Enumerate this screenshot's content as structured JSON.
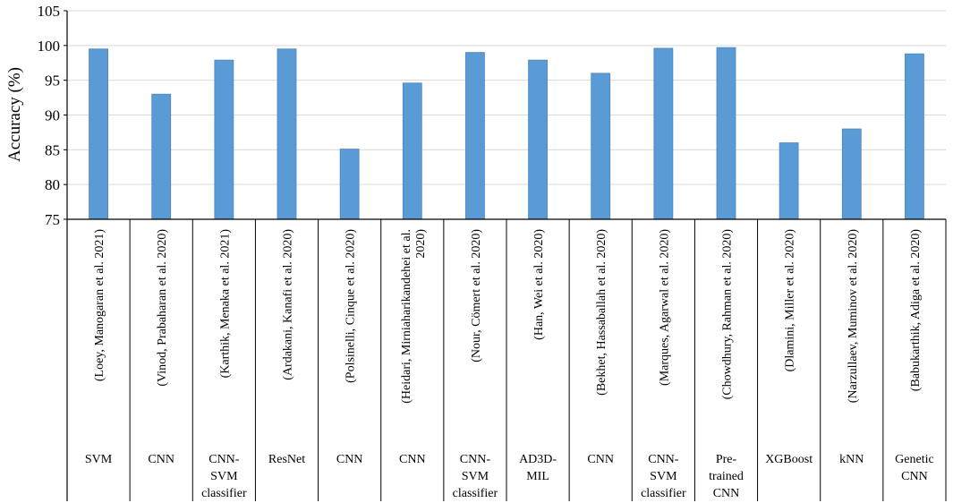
{
  "chart_data": {
    "type": "bar",
    "title": "",
    "xlabel": "",
    "ylabel": "Accuracy (%)",
    "ylim": [
      75,
      105
    ],
    "yticks": [
      75,
      80,
      85,
      90,
      95,
      100,
      105
    ],
    "grid": true,
    "bar_color": "#5b9bd5",
    "categories": [
      [
        "(Loey, Manogaran et al. 2021)"
      ],
      [
        "(Vinod, Prabaharan et al. 2020)"
      ],
      [
        "(Karthik, Menaka et al. 2021)"
      ],
      [
        "(Ardakani, Kanafi et al. 2020)"
      ],
      [
        "(Polsinelli, Cinque et al. 2020)"
      ],
      [
        "(Heidari, Mirniaharikandehei et al.",
        "2020)"
      ],
      [
        "(Nour, Cömert et al. 2020)"
      ],
      [
        "(Han, Wei et al. 2020)"
      ],
      [
        "(Bekhet, Hassaballah et al. 2020)"
      ],
      [
        "(Marques, Agarwal et al. 2020)"
      ],
      [
        "(Chowdhury, Rahman et al. 2020)"
      ],
      [
        "(Dlamini, Miller et al. 2020)"
      ],
      [
        "(Narzullaev, Muminov et al. 2020)"
      ],
      [
        "(Babukarthik, Adiga et al. 2020)"
      ]
    ],
    "methods": [
      [
        "SVM"
      ],
      [
        "CNN"
      ],
      [
        "CNN-",
        "SVM",
        "classifier"
      ],
      [
        "ResNet"
      ],
      [
        "CNN"
      ],
      [
        "CNN"
      ],
      [
        "CNN-",
        "SVM",
        "classifier"
      ],
      [
        "AD3D-",
        "MIL"
      ],
      [
        "CNN"
      ],
      [
        "CNN-",
        "SVM",
        "classifier"
      ],
      [
        "Pre-",
        "trained",
        "CNN"
      ],
      [
        "XGBoost"
      ],
      [
        "kNN"
      ],
      [
        "Genetic",
        "CNN"
      ]
    ],
    "values": [
      99.5,
      93.0,
      97.9,
      99.5,
      85.1,
      94.6,
      99.0,
      97.9,
      96.0,
      99.6,
      99.7,
      86.0,
      88.0,
      98.8
    ]
  }
}
